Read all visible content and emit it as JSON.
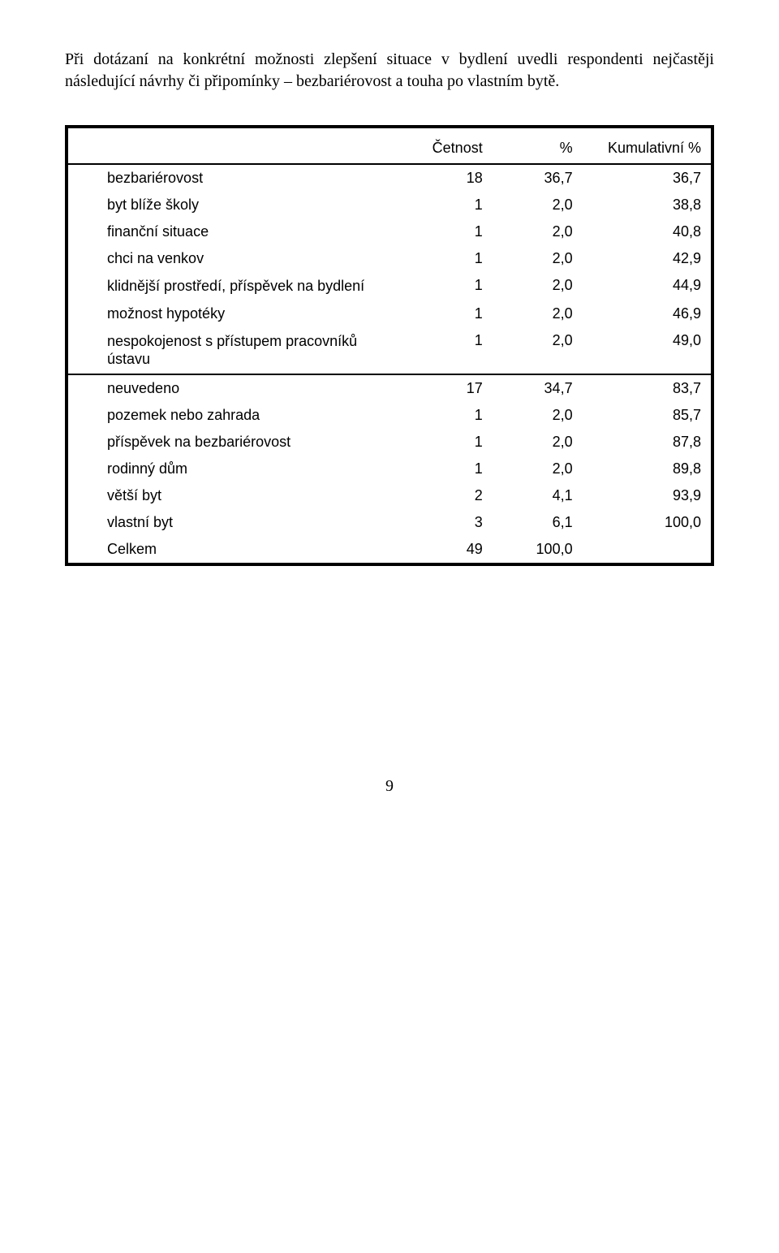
{
  "intro_text": "Při dotázaní na konkrétní možnosti zlepšení situace v bydlení uvedli respondenti nejčastěji následující návrhy či připomínky – bezbariérovost a touha po vlastním bytě.",
  "table": {
    "headers": {
      "label": "",
      "freq": "Četnost",
      "pct": "%",
      "cum": "Kumulativní %"
    },
    "rows": [
      {
        "label": "bezbariérovost",
        "freq": "18",
        "pct": "36,7",
        "cum": "36,7"
      },
      {
        "label": "byt blíže školy",
        "freq": "1",
        "pct": "2,0",
        "cum": "38,8"
      },
      {
        "label": "finanční situace",
        "freq": "1",
        "pct": "2,0",
        "cum": "40,8"
      },
      {
        "label": "chci na venkov",
        "freq": "1",
        "pct": "2,0",
        "cum": "42,9"
      },
      {
        "label": "klidnější prostředí, příspěvek na bydlení",
        "freq": "1",
        "pct": "2,0",
        "cum": "44,9"
      },
      {
        "label": "možnost hypotéky",
        "freq": "1",
        "pct": "2,0",
        "cum": "46,9"
      },
      {
        "label": "nespokojenost s přístupem pracovníků ústavu",
        "freq": "1",
        "pct": "2,0",
        "cum": "49,0"
      },
      {
        "label": "neuvedeno",
        "freq": "17",
        "pct": "34,7",
        "cum": "83,7"
      },
      {
        "label": "pozemek nebo zahrada",
        "freq": "1",
        "pct": "2,0",
        "cum": "85,7"
      },
      {
        "label": "příspěvek na bezbariérovost",
        "freq": "1",
        "pct": "2,0",
        "cum": "87,8"
      },
      {
        "label": "rodinný dům",
        "freq": "1",
        "pct": "2,0",
        "cum": "89,8"
      },
      {
        "label": "větší byt",
        "freq": "2",
        "pct": "4,1",
        "cum": "93,9"
      },
      {
        "label": "vlastní byt",
        "freq": "3",
        "pct": "6,1",
        "cum": "100,0"
      },
      {
        "label": "Celkem",
        "freq": "49",
        "pct": "100,0",
        "cum": ""
      }
    ],
    "col_widths": {
      "label": "52%",
      "freq": "14%",
      "pct": "14%",
      "cum": "20%"
    },
    "sep_before_index": 7
  },
  "page_number": "9"
}
